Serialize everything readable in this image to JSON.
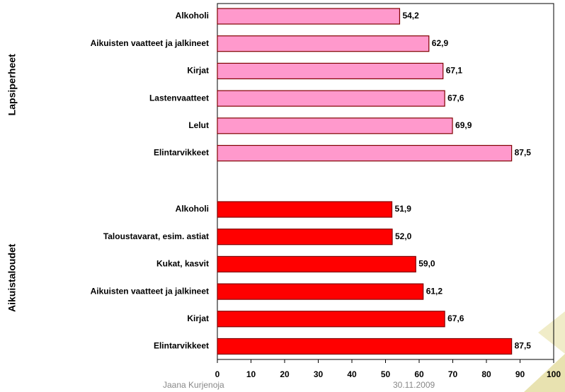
{
  "chart_data": {
    "type": "bar",
    "groups": [
      {
        "name": "Lapsiperheet",
        "color": "#ff99cc",
        "categories": [
          "Alkoholi",
          "Aikuisten vaatteet ja jalkineet",
          "Kirjat",
          "Lastenvaatteet",
          "Lelut",
          "Elintarvikkeet"
        ],
        "values": [
          54.2,
          62.9,
          67.1,
          67.6,
          69.9,
          87.5
        ],
        "value_labels": [
          "54,2",
          "62,9",
          "67,1",
          "67,6",
          "69,9",
          "87,5"
        ]
      },
      {
        "name": "Aikuistaloudet",
        "color": "#ff0000",
        "categories": [
          "Alkoholi",
          "Taloustavarat, esim. astiat",
          "Kukat, kasvit",
          "Aikuisten vaatteet ja jalkineet",
          "Kirjat",
          "Elintarvikkeet"
        ],
        "values": [
          51.9,
          52.0,
          59.0,
          61.2,
          67.6,
          87.5
        ],
        "value_labels": [
          "51,9",
          "52,0",
          "59,0",
          "61,2",
          "67,6",
          "87,5"
        ]
      }
    ],
    "xlim": [
      0,
      100
    ],
    "xticks": [
      0,
      10,
      20,
      30,
      40,
      50,
      60,
      70,
      80,
      90,
      100
    ],
    "grid": false
  },
  "footer": {
    "author": "Jaana Kurjenoja",
    "date": "30.11.2009"
  }
}
